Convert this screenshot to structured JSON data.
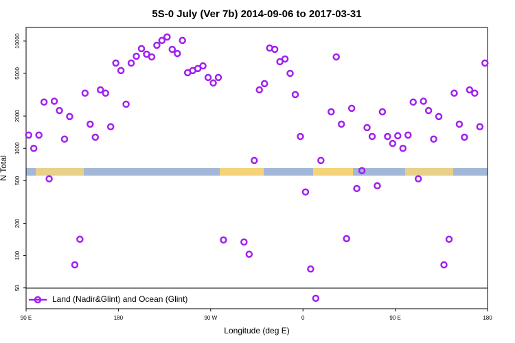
{
  "chart_data": {
    "type": "scatter",
    "title": "5S-0 July (Ver 7b)   2014-09-06 to 2017-03-31",
    "x_label": "Longitude (deg E)",
    "y_label": "N Total",
    "log_y": true,
    "legend": "bottom-left",
    "xlim": [
      90,
      540
    ],
    "ylim": [
      32,
      13400
    ],
    "xticks": [
      {
        "value": 90,
        "label": "90 E"
      },
      180,
      {
        "value": 270,
        "label": "90 W"
      },
      {
        "value": 360,
        "label": "0"
      },
      {
        "value": 450,
        "label": "90 E"
      },
      {
        "value": 540,
        "label": "180"
      }
    ],
    "yticks": [
      50,
      100,
      200,
      500,
      1000,
      2000,
      5000,
      10000
    ],
    "series": [
      {
        "name": "Land (Nadir&Glint) and Ocean (Glint)",
        "color": "#a020f0",
        "x": [
          92.5,
          97.5,
          102.5,
          107.5,
          112.5,
          117.5,
          122.5,
          127.5,
          132.5,
          137.5,
          142.5,
          147.5,
          152.5,
          157.5,
          162.5,
          167.5,
          172.5,
          177.5,
          182.5,
          187.5,
          192.5,
          197.5,
          202.5,
          207.5,
          212.5,
          217.5,
          222.5,
          227.5,
          232.5,
          237.5,
          242.5,
          247.5,
          252.5,
          257.5,
          262.5,
          267.5,
          272.5,
          277.5,
          282.5,
          302.5,
          307.5,
          312.5,
          317.5,
          322.5,
          327.5,
          332.5,
          337.5,
          342.5,
          347.5,
          352.5,
          357.5,
          362.5,
          367.5,
          372.5,
          377.5,
          387.5,
          392.5,
          397.5,
          402.5,
          407.5,
          412.5,
          417.5,
          422.5,
          427.5,
          432.5,
          437.5,
          442.5,
          447.5,
          452.5,
          457.5,
          462.5,
          467.5,
          472.5,
          477.5,
          482.5,
          487.5,
          492.5,
          497.5,
          502.5,
          507.5,
          512.5,
          517.5,
          522.5,
          527.5,
          532.5,
          537.5
        ],
        "values": [
          1330,
          1000,
          1330,
          2700,
          520,
          2750,
          2250,
          1220,
          1980,
          82,
          142,
          3270,
          1680,
          1270,
          3510,
          3270,
          1590,
          6240,
          5310,
          2580,
          6240,
          7220,
          8500,
          7550,
          7120,
          9140,
          10140,
          10920,
          8370,
          7660,
          10140,
          5070,
          5310,
          5550,
          5870,
          4580,
          4070,
          4580,
          140,
          134,
          103,
          771,
          3510,
          4010,
          8610,
          8370,
          6420,
          6810,
          5000,
          3170,
          1290,
          392,
          75,
          40,
          771,
          2190,
          7120,
          1680,
          144,
          2360,
          422,
          620,
          1560,
          1290,
          448,
          2190,
          1290,
          1110,
          1310,
          1000,
          1330,
          2700,
          520,
          2750,
          2250,
          1220,
          1980,
          82,
          142,
          3270,
          1680,
          1270,
          3510,
          3270,
          1590,
          6240
        ]
      }
    ]
  }
}
